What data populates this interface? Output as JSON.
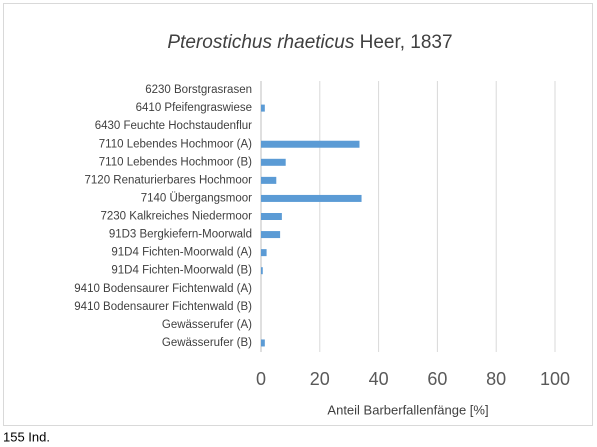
{
  "chart_data": {
    "type": "bar",
    "orientation": "horizontal",
    "title": {
      "taxon": "Pterostichus rhaeticus",
      "author": "Heer, 1837"
    },
    "x_label": "Anteil Barberfallenfänge [%]",
    "categories": [
      "6230 Borstgrasrasen",
      "6410 Pfeifengraswiese",
      "6430 Feuchte Hochstaudenflur",
      "7110 Lebendes Hochmoor (A)",
      "7110 Lebendes Hochmoor (B)",
      "7120 Renaturierbares Hochmoor",
      "7140 Übergangsmoor",
      "7230 Kalkreiches Niedermoor",
      "91D3 Bergkiefern-Moorwald",
      "91D4 Fichten-Moorwald (A)",
      "91D4 Fichten-Moorwald (B)",
      "9410 Bodensaurer Fichtenwald (A)",
      "9410 Bodensaurer Fichtenwald (B)",
      "Gewässerufer (A)",
      "Gewässerufer (B)"
    ],
    "values": [
      0,
      1.3,
      0,
      33.5,
      8.4,
      5.2,
      34.2,
      7.1,
      6.5,
      1.9,
      0.6,
      0,
      0,
      0,
      1.3
    ],
    "color": "#5b9bd5",
    "xlim": [
      0,
      100
    ],
    "xticks": [
      0,
      20,
      40,
      60,
      80,
      100
    ],
    "grid": true,
    "annotation": "155 Ind."
  }
}
